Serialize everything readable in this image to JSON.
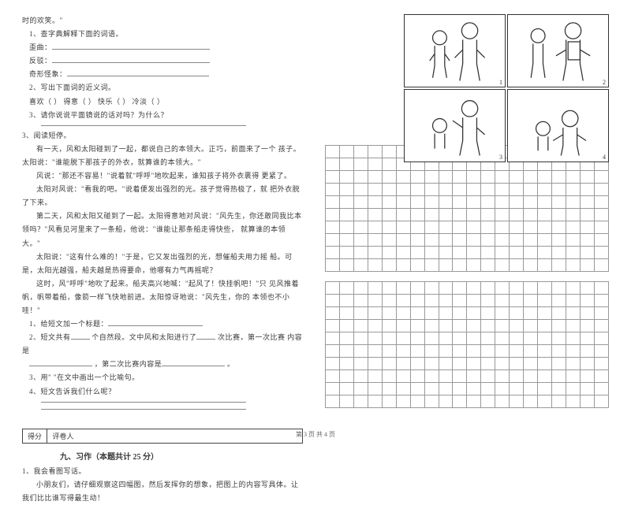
{
  "leftTop": {
    "l1": "时的欢笑。\"",
    "l2": "1、查字典解释下面的词语。",
    "l3": "歪曲：",
    "l4": "反驳：",
    "l5": "奇形怪象：",
    "l6": "2、写出下面词的近义词。",
    "syn1a": "喜欢（",
    "syn1b": "）    得意（",
    "syn1c": "）    快乐（",
    "syn1d": "）    冷淡（",
    "syn1e": "）",
    "l8": "3、请你说说平面镜说的话对吗？为什么？"
  },
  "reading": {
    "title": "3、阅读短停。",
    "p1": "有一天，风和太阳碰到了一起，都说自己的本领大。正巧，前面来了一个  孩子。太阳说：\"谁能脱下那孩子的外衣，就算谁的本领大。\"",
    "p2": "风说：\"那还不容易！\"说着就\"呼呼\"地吹起来，谁知孩子将外衣裹得  更紧了。",
    "p3": "太阳对风说：\"看我的吧。\"说着便发出强烈的光。孩子觉得热极了，就  把外衣脱了下来。",
    "p4": "第二天，风和太阳又碰到了一起。太阳得意地对风说：\"风先生，你还敢同我比本领吗？\"风看见河里来了一条船，他说：\"谁能让那条船走得快些，  就算谁的本领大。\"",
    "p5": "太阳说：\"这有什么难的！\"于是，它又发出强烈的光，想催船夫用力摇  船。可是，太阳光越强，船夫越是热得要命，他哪有力气再摇呢？",
    "p6": "这时，风\"呼呼\"地吹了起来。船夫高兴地喊：\"起风了！快挂帆吧！\"只  见风推着帆，帆带着船，像箭一样飞快地前进。太阳惊讶地说：\"风先生，你的  本领也不小哇！\"",
    "q1": "1、给短文加一个标题：",
    "q2a": "2、短文共有",
    "q2b": "个自然段。文中风和太阳进行了",
    "q2c": "次比赛，第一次比赛    内容是",
    "q2d": "，第二次比赛内容是",
    "q2e": "。",
    "q3": "3、用\"            \"在文中画出一个比喻句。",
    "q4": "4、短文告诉我们什么呢？"
  },
  "score": {
    "a": "得分",
    "b": "评卷人"
  },
  "section9": {
    "title": "九、习作（本题共计 25 分）",
    "q1": "1、我会看图写话。",
    "body": "小朋友们，请仔细观察这四幅图，然后发挥你的想象，把图上的内容写具体。让我们比比谁写得最生动！"
  },
  "panels": {
    "n1": "1",
    "n2": "2",
    "n3": "3",
    "n4": "4"
  },
  "grid": {
    "rows1": 10,
    "rows2": 10,
    "cols": 20
  },
  "footer": "第 3 页  共 4 页"
}
